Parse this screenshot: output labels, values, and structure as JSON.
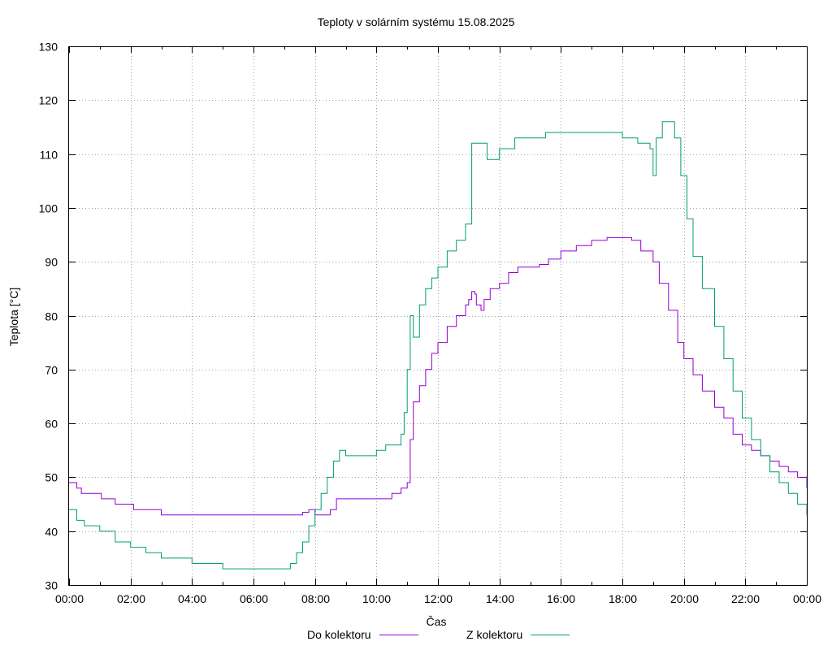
{
  "chart_data": {
    "type": "line",
    "title": "Teploty v solárním systému 15.08.2025",
    "xlabel": "Čas",
    "ylabel": "Teplota [°C]",
    "xlim": [
      0,
      24
    ],
    "ylim": [
      30,
      130
    ],
    "y_ticks": [
      30,
      40,
      50,
      60,
      70,
      80,
      90,
      100,
      110,
      120,
      130
    ],
    "x_tick_labels": [
      "00:00",
      "02:00",
      "04:00",
      "06:00",
      "08:00",
      "10:00",
      "12:00",
      "14:00",
      "16:00",
      "18:00",
      "20:00",
      "22:00",
      "00:00"
    ],
    "grid": true,
    "legend_position": "bottom-center",
    "series": [
      {
        "name": "Do kolektoru",
        "color": "#9400d3",
        "x": [
          0,
          0.25,
          0.4,
          1.0,
          1.05,
          1.5,
          2.0,
          2.1,
          2.5,
          3.0,
          3.5,
          4.5,
          5.5,
          6.5,
          7.3,
          7.6,
          7.8,
          8.0,
          8.3,
          8.5,
          8.7,
          9.0,
          9.5,
          10.0,
          10.5,
          10.8,
          11.0,
          11.1,
          11.2,
          11.4,
          11.6,
          11.8,
          12.0,
          12.3,
          12.6,
          12.9,
          13.0,
          13.1,
          13.2,
          13.25,
          13.4,
          13.5,
          13.7,
          14.0,
          14.3,
          14.6,
          15.0,
          15.3,
          15.6,
          16.0,
          16.5,
          17.0,
          17.5,
          18.0,
          18.3,
          18.6,
          18.8,
          19.0,
          19.2,
          19.5,
          19.8,
          20.0,
          20.3,
          20.6,
          21.0,
          21.3,
          21.6,
          21.9,
          22.2,
          22.5,
          22.8,
          23.1,
          23.4,
          23.7,
          24.0
        ],
        "values": [
          49,
          48,
          47,
          47,
          46,
          45,
          45,
          44,
          44,
          43,
          43,
          43,
          43,
          43,
          43,
          43.5,
          44,
          43,
          43,
          44,
          46,
          46,
          46,
          46,
          47,
          48,
          49,
          57,
          64,
          67,
          70,
          73,
          75,
          78,
          80,
          82,
          83,
          84.5,
          84,
          82,
          81,
          83,
          85,
          86,
          88,
          89,
          89,
          89.5,
          90.5,
          92,
          93,
          94,
          94.5,
          94.5,
          94,
          92,
          92,
          90,
          86,
          81,
          75,
          72,
          69,
          66,
          63,
          61,
          58,
          56,
          55,
          54,
          53,
          52,
          51,
          50,
          48
        ]
      },
      {
        "name": "Z kolektoru",
        "color": "#009e73",
        "x": [
          0,
          0.25,
          0.5,
          1.0,
          1.5,
          2.0,
          2.5,
          3.0,
          3.5,
          4.0,
          4.5,
          5.0,
          5.5,
          6.0,
          6.5,
          6.9,
          7.2,
          7.4,
          7.6,
          7.8,
          8.0,
          8.2,
          8.4,
          8.6,
          8.8,
          9.0,
          9.3,
          9.6,
          10.0,
          10.3,
          10.6,
          10.8,
          10.9,
          11.0,
          11.1,
          11.2,
          11.4,
          11.6,
          11.8,
          12.0,
          12.3,
          12.6,
          12.9,
          13.05,
          13.1,
          13.3,
          13.6,
          14.0,
          14.5,
          15.0,
          15.5,
          16.0,
          16.5,
          17.0,
          17.5,
          18.0,
          18.5,
          18.9,
          19.0,
          19.1,
          19.3,
          19.5,
          19.7,
          19.9,
          20.1,
          20.3,
          20.6,
          21.0,
          21.3,
          21.6,
          21.9,
          22.2,
          22.5,
          22.8,
          23.1,
          23.4,
          23.7,
          24.0
        ],
        "values": [
          44,
          42,
          41,
          40,
          38,
          37,
          36,
          35,
          35,
          34,
          34,
          33,
          33,
          33,
          33,
          33,
          34,
          36,
          38,
          41,
          44,
          47,
          50,
          53,
          55,
          54,
          54,
          54,
          55,
          56,
          56,
          58,
          62,
          70,
          80,
          76,
          82,
          85,
          87,
          89,
          92,
          94,
          97,
          97,
          112,
          112,
          109,
          111,
          113,
          113,
          114,
          114,
          114,
          114,
          114,
          113,
          112,
          111,
          106,
          113,
          116,
          116,
          113,
          106,
          98,
          91,
          85,
          78,
          72,
          66,
          61,
          57,
          54,
          51,
          49,
          47,
          45,
          43
        ]
      }
    ]
  }
}
